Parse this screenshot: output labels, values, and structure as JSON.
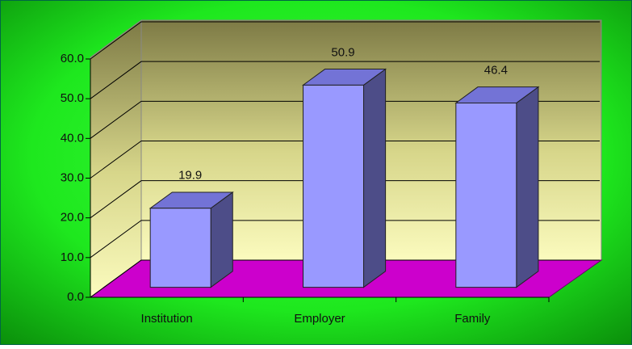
{
  "chart_data": {
    "type": "bar3d",
    "categories": [
      "Institution",
      "Employer",
      "Family"
    ],
    "values": [
      19.9,
      50.9,
      46.4
    ],
    "color": "#9999ff",
    "ylim": [
      0,
      60
    ],
    "yticks": [
      {
        "value": 0,
        "label": "0.0"
      },
      {
        "value": 10,
        "label": "10.0"
      },
      {
        "value": 20,
        "label": "20.0"
      },
      {
        "value": 30,
        "label": "30.0"
      },
      {
        "value": 40,
        "label": "40.0"
      },
      {
        "value": 50,
        "label": "50.0"
      },
      {
        "value": 60,
        "label": "60.0"
      }
    ],
    "grid": true
  }
}
